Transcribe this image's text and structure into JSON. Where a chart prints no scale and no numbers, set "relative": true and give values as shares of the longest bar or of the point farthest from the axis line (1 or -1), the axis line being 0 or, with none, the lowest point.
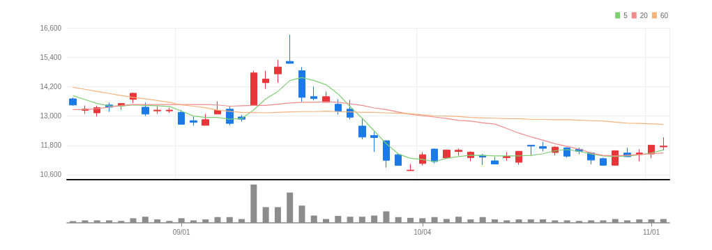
{
  "chart_data": [
    {
      "type": "candlestick",
      "categories": [
        null,
        null,
        null,
        null,
        null,
        null,
        null,
        null,
        null,
        null,
        null,
        null,
        null,
        null,
        null,
        null,
        null,
        null,
        null,
        null,
        null,
        null,
        null,
        null,
        null,
        null,
        null,
        null,
        null,
        null,
        null,
        null,
        null,
        null,
        null,
        null,
        null,
        null,
        null,
        null,
        null,
        null,
        null,
        null,
        null,
        null,
        null,
        null,
        null,
        null
      ],
      "ohlc": [
        [
          13700,
          13750,
          13420,
          13450
        ],
        [
          13230,
          13430,
          13090,
          13280
        ],
        [
          13130,
          13420,
          12980,
          13340
        ],
        [
          13450,
          13550,
          13170,
          13360
        ],
        [
          13420,
          13510,
          13260,
          13510
        ],
        [
          13680,
          13950,
          13530,
          13930
        ],
        [
          13360,
          13550,
          13000,
          13080
        ],
        [
          13210,
          13400,
          13090,
          13240
        ],
        [
          13210,
          13340,
          13130,
          13240
        ],
        [
          13150,
          13250,
          12660,
          12660
        ],
        [
          12810,
          12980,
          12600,
          12740
        ],
        [
          12620,
          13090,
          12620,
          12850
        ],
        [
          13080,
          13600,
          13080,
          13230
        ],
        [
          13280,
          13420,
          12620,
          12700
        ],
        [
          12960,
          13040,
          12770,
          12870
        ],
        [
          13430,
          14850,
          13430,
          14760
        ],
        [
          14360,
          14850,
          14110,
          14510
        ],
        [
          14720,
          15300,
          14360,
          15000
        ],
        [
          15230,
          16320,
          15150,
          15150
        ],
        [
          14850,
          15000,
          13570,
          13760
        ],
        [
          13790,
          14200,
          13640,
          13710
        ],
        [
          13560,
          14000,
          13560,
          13790
        ],
        [
          13480,
          13690,
          13050,
          13200
        ],
        [
          13280,
          13660,
          12860,
          12950
        ],
        [
          12590,
          12900,
          12050,
          12140
        ],
        [
          12200,
          12350,
          11530,
          12120
        ],
        [
          11990,
          11990,
          10890,
          11190
        ],
        [
          11420,
          11480,
          10980,
          10980
        ],
        [
          10770,
          11040,
          10770,
          10790
        ],
        [
          11060,
          11530,
          10980,
          11420
        ],
        [
          11650,
          11670,
          11060,
          11140
        ],
        [
          11290,
          11630,
          11270,
          11610
        ],
        [
          11550,
          11670,
          11380,
          11600
        ],
        [
          11300,
          11560,
          11150,
          11520
        ],
        [
          11390,
          11450,
          11000,
          11320
        ],
        [
          11170,
          11330,
          11040,
          11040
        ],
        [
          11300,
          11520,
          11170,
          11350
        ],
        [
          11110,
          11560,
          11010,
          11560
        ],
        [
          11810,
          11810,
          11360,
          11770
        ],
        [
          11750,
          11940,
          11560,
          11680
        ],
        [
          11510,
          11770,
          11390,
          11730
        ],
        [
          11700,
          11730,
          11300,
          11360
        ],
        [
          11640,
          11710,
          11450,
          11560
        ],
        [
          11490,
          11520,
          11030,
          11200
        ],
        [
          11260,
          11300,
          10970,
          10990
        ],
        [
          10990,
          11600,
          10990,
          11580
        ],
        [
          11490,
          11700,
          11320,
          11340
        ],
        [
          11430,
          11640,
          11150,
          11490
        ],
        [
          11450,
          11810,
          11280,
          11810
        ],
        [
          11740,
          12130,
          11600,
          11770
        ]
      ],
      "colors": [
        "#1b7ae6",
        "#e8353a",
        "#e8353a",
        "#1b7ae6",
        "#e8353a",
        "#e8353a",
        "#1b7ae6",
        "#e8353a",
        "#e8353a",
        "#1b7ae6",
        "#1b7ae6",
        "#e8353a",
        "#e8353a",
        "#1b7ae6",
        "#1b7ae6",
        "#e8353a",
        "#e8353a",
        "#e8353a",
        "#1b7ae6",
        "#1b7ae6",
        "#1b7ae6",
        "#e8353a",
        "#1b7ae6",
        "#1b7ae6",
        "#1b7ae6",
        "#1b7ae6",
        "#1b7ae6",
        "#1b7ae6",
        "#e8353a",
        "#e8353a",
        "#1b7ae6",
        "#e8353a",
        "#e8353a",
        "#e8353a",
        "#1b7ae6",
        "#1b7ae6",
        "#e8353a",
        "#e8353a",
        "#1b7ae6",
        "#1b7ae6",
        "#e8353a",
        "#1b7ae6",
        "#1b7ae6",
        "#1b7ae6",
        "#1b7ae6",
        "#e8353a",
        "#1b7ae6",
        "#e8353a",
        "#e8353a",
        "#e8353a"
      ],
      "series": [
        {
          "type": "line",
          "name": "5",
          "color": "#7dcf72",
          "values": [
            13830,
            13670,
            13510,
            13420,
            13400,
            13450,
            13430,
            13420,
            13390,
            13200,
            13000,
            12940,
            12940,
            12870,
            12890,
            13250,
            13700,
            14000,
            14450,
            14570,
            14450,
            14280,
            13900,
            13380,
            12910,
            12390,
            11870,
            11450,
            11270,
            11230,
            11140,
            11270,
            11340,
            11400,
            11390,
            11370,
            11370,
            11370,
            11390,
            11460,
            11580,
            11630,
            11560,
            11450,
            11370,
            11350,
            11370,
            11410,
            11490,
            11610
          ]
        },
        {
          "type": "line",
          "name": "20",
          "color": "#f28b8b",
          "values": [
            13260,
            13260,
            13300,
            13360,
            13430,
            13470,
            13470,
            13470,
            13470,
            13470,
            13470,
            13470,
            13450,
            13400,
            13420,
            13430,
            13430,
            13480,
            13530,
            13560,
            13560,
            13580,
            13560,
            13500,
            13430,
            13330,
            13260,
            13160,
            13070,
            13010,
            12960,
            12900,
            12820,
            12790,
            12720,
            12670,
            12490,
            12300,
            12150,
            12010,
            11870,
            11760,
            11650,
            11490,
            11390,
            11370,
            11400,
            11430,
            11460,
            11490
          ]
        },
        {
          "type": "line",
          "name": "60",
          "color": "#f5b27a",
          "values": [
            14170,
            14090,
            14000,
            13920,
            13840,
            13760,
            13700,
            13630,
            13560,
            13450,
            13400,
            13340,
            13240,
            13190,
            13150,
            13140,
            13130,
            13150,
            13170,
            13180,
            13180,
            13200,
            13180,
            13170,
            13150,
            13150,
            13130,
            13110,
            13090,
            13050,
            13010,
            13000,
            12980,
            12940,
            12920,
            12910,
            12890,
            12890,
            12860,
            12860,
            12850,
            12850,
            12830,
            12810,
            12790,
            12750,
            12710,
            12700,
            12680,
            12660
          ]
        }
      ],
      "ylim": [
        10400,
        16600
      ],
      "yticks": [
        {
          "value": 10600,
          "label": "10,600"
        },
        {
          "value": 11800,
          "label": "11,800"
        },
        {
          "value": 13000,
          "label": "13,000"
        },
        {
          "value": 14200,
          "label": "14,200"
        },
        {
          "value": 15400,
          "label": "15,400"
        },
        {
          "value": 16600,
          "label": "16,600"
        }
      ],
      "grid": true,
      "legend": "top right",
      "tick_labels": "y"
    },
    {
      "type": "bar",
      "relative": true,
      "color": "#8c8c8c",
      "categories": [
        null,
        null,
        null,
        null,
        null,
        null,
        null,
        null,
        null,
        "09/01",
        null,
        null,
        null,
        null,
        null,
        null,
        null,
        null,
        null,
        null,
        null,
        null,
        null,
        null,
        null,
        null,
        null,
        null,
        null,
        "10/04",
        null,
        null,
        null,
        null,
        null,
        null,
        null,
        null,
        null,
        null,
        null,
        null,
        null,
        null,
        null,
        null,
        null,
        null,
        "11/01",
        null
      ],
      "values": [
        0.045,
        0.065,
        0.065,
        0.065,
        0.05,
        0.12,
        0.16,
        0.09,
        0.05,
        0.12,
        0.065,
        0.09,
        0.15,
        0.15,
        0.1,
        1,
        0.41,
        0.41,
        0.79,
        0.45,
        0.19,
        0.1,
        0.18,
        0.16,
        0.16,
        0.19,
        0.3,
        0.15,
        0.13,
        0.12,
        0.15,
        0.1,
        0.16,
        0.09,
        0.15,
        0.09,
        0.065,
        0.09,
        0.09,
        0.09,
        0.065,
        0.065,
        0.05,
        0.065,
        0.065,
        0.1,
        0.065,
        0.09,
        0.09,
        0.1
      ]
    }
  ]
}
